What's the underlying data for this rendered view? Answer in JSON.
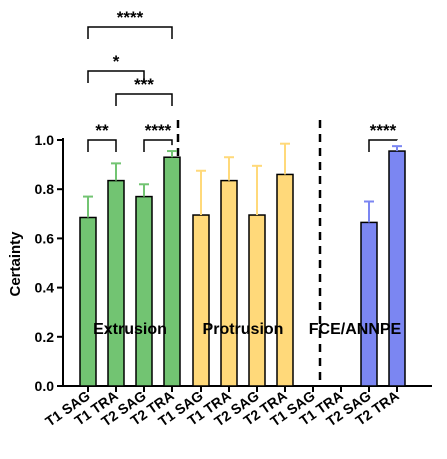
{
  "chart_data": {
    "type": "bar",
    "ylabel": "Certainty",
    "ylim": [
      0,
      1.0
    ],
    "yticks": [
      "0.0",
      "0.2",
      "0.4",
      "0.6",
      "0.8",
      "1.0"
    ],
    "categories": [
      "T1 SAG",
      "T1 TRA",
      "T2 SAG",
      "T2 TRA"
    ],
    "groups": [
      {
        "name": "Extrusion",
        "color": "#72c472",
        "values": [
          0.685,
          0.835,
          0.77,
          0.93
        ],
        "errors": [
          0.085,
          0.07,
          0.05,
          0.025
        ],
        "comparisons": [
          {
            "from": 0,
            "to": 1,
            "stars": "**"
          },
          {
            "from": 2,
            "to": 3,
            "stars": "****"
          },
          {
            "from": 1,
            "to": 3,
            "stars": "***"
          },
          {
            "from": 0,
            "to": 2,
            "stars": "*"
          },
          {
            "from": 0,
            "to": 3,
            "stars": "****"
          }
        ]
      },
      {
        "name": "Protrusion",
        "color": "#ffd97a",
        "values": [
          0.695,
          0.835,
          0.695,
          0.86
        ],
        "errors": [
          0.18,
          0.095,
          0.2,
          0.125
        ],
        "comparisons": []
      },
      {
        "name": "FCE/ANNPE",
        "color": "#7b86f2",
        "values": [
          null,
          null,
          0.665,
          0.955
        ],
        "errors": [
          null,
          null,
          0.085,
          0.02
        ],
        "comparisons": [
          {
            "from": 2,
            "to": 3,
            "stars": "****"
          }
        ]
      }
    ],
    "grid": false,
    "legend": "none"
  }
}
